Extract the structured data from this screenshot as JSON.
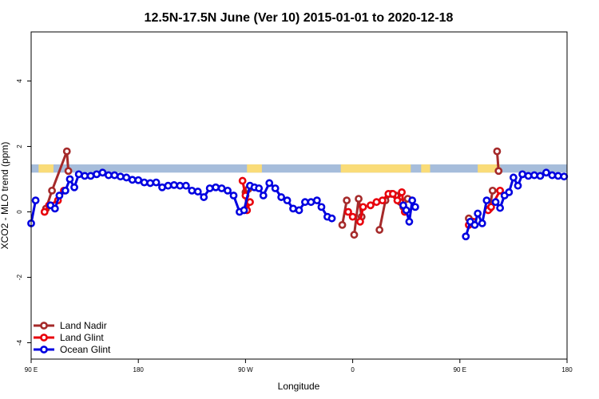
{
  "chart_data": {
    "type": "line",
    "title": "12.5N-17.5N June (Ver 10)   2015-01-01 to 2020-12-18",
    "xlabel": "Longitude",
    "ylabel": "XCO2 - MLO trend (ppm)",
    "xlim": [
      -90,
      270
    ],
    "ylim": [
      -4.5,
      5.5
    ],
    "x_ticks": [
      {
        "value": -90,
        "label": "90 E"
      },
      {
        "value": -18,
        "label": "180"
      },
      {
        "value": 54,
        "label": "90 W"
      },
      {
        "value": 126,
        "label": "0"
      },
      {
        "value": 198,
        "label": "90 E"
      },
      {
        "value": 270,
        "label": "180"
      }
    ],
    "y_ticks": [
      {
        "value": -4,
        "label": "-4"
      },
      {
        "value": -2,
        "label": "-2"
      },
      {
        "value": 0,
        "label": "0"
      },
      {
        "value": 2,
        "label": "2"
      },
      {
        "value": 4,
        "label": "4"
      }
    ],
    "land_band": {
      "y_range": [
        1.2,
        1.45
      ],
      "ocean_color": "#a6bddb",
      "land_color": "#fadc78",
      "land_segments": [
        [
          -85,
          -75
        ],
        [
          55,
          65
        ],
        [
          118,
          165
        ],
        [
          172,
          178
        ],
        [
          210,
          225
        ]
      ]
    },
    "series": [
      {
        "name": "Land Nadir",
        "color": "#a52a2a",
        "points": [
          [
            -80,
            0.1
          ],
          [
            -76,
            0.65
          ],
          [
            -66,
            1.85
          ],
          [
            -65,
            1.25
          ],
          null,
          [
            54,
            0.6
          ],
          [
            56,
            0.7
          ],
          null,
          [
            119,
            -0.4
          ],
          [
            122,
            0.35
          ],
          null,
          [
            127,
            -0.7
          ],
          [
            130,
            0.4
          ],
          [
            132,
            -0.15
          ],
          null,
          [
            144,
            -0.55
          ],
          [
            148,
            0.35
          ],
          [
            152,
            0.55
          ],
          [
            155,
            0.5
          ],
          [
            158,
            0.3
          ],
          [
            160,
            0.15
          ],
          [
            163,
            0.4
          ],
          null,
          [
            204,
            -0.2
          ],
          [
            206,
            -0.3
          ],
          null,
          [
            218,
            0.1
          ],
          [
            220,
            0.65
          ],
          null,
          [
            223,
            1.85
          ],
          [
            224,
            1.25
          ]
        ]
      },
      {
        "name": "Land Glint",
        "color": "#e8000b",
        "points": [
          [
            -81,
            0.0
          ],
          [
            -78,
            0.2
          ],
          [
            -72,
            0.35
          ],
          [
            -68,
            0.65
          ],
          null,
          [
            52,
            0.95
          ],
          [
            54,
            0.5
          ],
          [
            55,
            0.05
          ],
          [
            57,
            0.3
          ],
          null,
          [
            123,
            0.0
          ],
          [
            126,
            -0.15
          ],
          null,
          [
            131,
            -0.3
          ],
          [
            133,
            0.15
          ],
          null,
          [
            138,
            0.2
          ],
          [
            142,
            0.3
          ],
          [
            146,
            0.35
          ],
          [
            150,
            0.55
          ],
          [
            153,
            0.55
          ],
          [
            156,
            0.35
          ],
          [
            159,
            0.6
          ],
          [
            161,
            0.0
          ],
          null,
          [
            204,
            -0.4
          ],
          [
            207,
            -0.3
          ],
          null,
          [
            217,
            0.05
          ],
          [
            219,
            0.15
          ],
          [
            225,
            0.65
          ]
        ]
      },
      {
        "name": "Ocean Glint",
        "color": "#0000e0",
        "points": [
          [
            -90,
            -0.35
          ],
          [
            -87,
            0.35
          ],
          null,
          [
            -77,
            0.2
          ],
          [
            -74,
            0.1
          ],
          [
            -71,
            0.5
          ],
          [
            -67,
            0.65
          ],
          [
            -64,
            1.0
          ],
          [
            -61,
            0.75
          ],
          [
            -58,
            1.15
          ],
          [
            -54,
            1.1
          ],
          [
            -50,
            1.1
          ],
          [
            -46,
            1.15
          ],
          [
            -42,
            1.2
          ],
          [
            -38,
            1.12
          ],
          [
            -34,
            1.12
          ],
          [
            -30,
            1.08
          ],
          [
            -26,
            1.05
          ],
          [
            -22,
            0.98
          ],
          [
            -18,
            0.97
          ],
          [
            -14,
            0.9
          ],
          [
            -10,
            0.88
          ],
          [
            -6,
            0.9
          ],
          [
            -2,
            0.75
          ],
          [
            2,
            0.8
          ],
          [
            6,
            0.82
          ],
          [
            10,
            0.8
          ],
          [
            14,
            0.8
          ],
          [
            18,
            0.65
          ],
          [
            22,
            0.62
          ],
          [
            26,
            0.45
          ],
          [
            30,
            0.72
          ],
          [
            34,
            0.75
          ],
          [
            38,
            0.72
          ],
          [
            42,
            0.65
          ],
          [
            46,
            0.5
          ],
          [
            50,
            0.0
          ],
          [
            53,
            0.05
          ],
          [
            57,
            0.8
          ],
          [
            60,
            0.75
          ],
          [
            63,
            0.72
          ],
          [
            66,
            0.5
          ],
          [
            70,
            0.88
          ],
          [
            74,
            0.72
          ],
          [
            78,
            0.45
          ],
          [
            82,
            0.35
          ],
          [
            86,
            0.1
          ],
          [
            90,
            0.05
          ],
          [
            94,
            0.3
          ],
          [
            98,
            0.3
          ],
          [
            102,
            0.35
          ],
          [
            105,
            0.15
          ],
          [
            109,
            -0.15
          ],
          [
            112,
            -0.2
          ],
          null,
          [
            160,
            0.2
          ],
          [
            162,
            0.05
          ],
          [
            164,
            -0.3
          ],
          [
            166,
            0.35
          ],
          [
            168,
            0.15
          ],
          null,
          [
            202,
            -0.75
          ],
          [
            205,
            -0.3
          ],
          [
            208,
            -0.4
          ],
          [
            210,
            -0.05
          ],
          [
            213,
            -0.35
          ],
          [
            216,
            0.35
          ],
          null,
          [
            222,
            0.3
          ],
          [
            225,
            0.12
          ],
          [
            228,
            0.5
          ],
          [
            231,
            0.6
          ],
          [
            234,
            1.05
          ],
          [
            237,
            0.8
          ],
          [
            240,
            1.15
          ],
          [
            244,
            1.1
          ],
          [
            248,
            1.12
          ],
          [
            252,
            1.1
          ],
          [
            256,
            1.2
          ],
          [
            260,
            1.12
          ],
          [
            264,
            1.1
          ],
          [
            268,
            1.08
          ]
        ]
      }
    ],
    "legend": {
      "position": "bottom-left",
      "items": [
        "Land Nadir",
        "Land Glint",
        "Ocean Glint"
      ]
    }
  }
}
